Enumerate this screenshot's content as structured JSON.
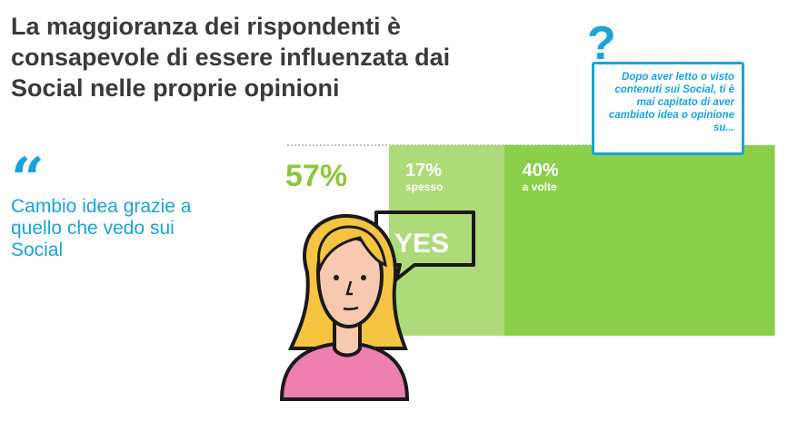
{
  "title": "La maggioranza dei rispondenti è consapevole di essere influenzata dai Social nelle proprie opinioni",
  "quote": {
    "mark": "“",
    "text": "Cambio idea grazie a quello che vedo sui Social"
  },
  "question": {
    "icon": "question-mark-icon",
    "mark": "?",
    "text": "Dopo aver letto o visto contenuti sui Social, ti è mai capitato di aver cambiato idea o opinione su..."
  },
  "speech": {
    "text": "YES"
  },
  "colors": {
    "accent": "#1aa3d9",
    "total": "#8cc63f",
    "spesso": "#aedb7a",
    "a_volte": "#8ccf4a",
    "title": "#3a3a3a",
    "skin": "#f6c9b0",
    "hair": "#f5c542",
    "shirt": "#ee7fae"
  },
  "chart_data": {
    "type": "bar",
    "total": {
      "label": "",
      "value": 57,
      "display": "57%"
    },
    "series": [
      {
        "name": "spesso",
        "value": 17,
        "display": "17%"
      },
      {
        "name": "a volte",
        "value": 40,
        "display": "40%"
      }
    ],
    "unit": "%",
    "ylim": [
      0,
      100
    ]
  }
}
